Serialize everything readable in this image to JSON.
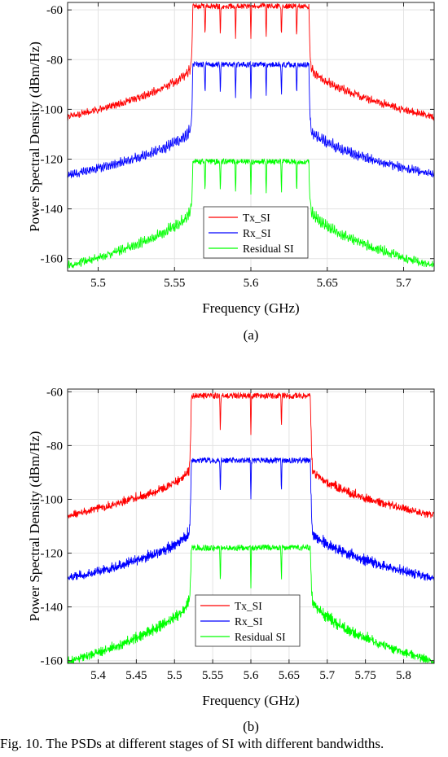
{
  "chart_data": [
    {
      "type": "line",
      "subfigure_label": "(a)",
      "xlabel": "Frequency (GHz)",
      "ylabel": "Power Spectral Density (dBm/Hz)",
      "xlim": [
        5.48,
        5.72
      ],
      "ylim": [
        -165,
        -57
      ],
      "xticks": [
        5.5,
        5.55,
        5.6,
        5.65,
        5.7
      ],
      "xtick_labels": [
        "5.5",
        "5.55",
        "5.6",
        "5.65",
        "5.7"
      ],
      "yticks": [
        -160,
        -140,
        -120,
        -100,
        -80,
        -60
      ],
      "ytick_labels": [
        "-160",
        "-140",
        "-120",
        "-100",
        "-80",
        "-60"
      ],
      "grid": true,
      "legend_position": "lower-center",
      "band": [
        5.562,
        5.638
      ],
      "notches": [
        5.57,
        5.58,
        5.59,
        5.6,
        5.61,
        5.62,
        5.63
      ],
      "series": [
        {
          "name": "Tx_SI",
          "color": "#ff0000",
          "in_band": -58.5,
          "skirt_top": -80,
          "edge": -102.5
        },
        {
          "name": "Rx_SI",
          "color": "#0000ff",
          "in_band": -82,
          "skirt_top": -104,
          "edge": -125.5
        },
        {
          "name": "Residual SI",
          "color": "#00ff00",
          "in_band": -121,
          "skirt_top": -136,
          "edge": -162
        }
      ]
    },
    {
      "type": "line",
      "subfigure_label": "(b)",
      "xlabel": "Frequency (GHz)",
      "ylabel": "Power Spectral Density (dBm/Hz)",
      "xlim": [
        5.36,
        5.84
      ],
      "ylim": [
        -161,
        -59
      ],
      "xticks": [
        5.4,
        5.45,
        5.5,
        5.55,
        5.6,
        5.65,
        5.7,
        5.75,
        5.8
      ],
      "xtick_labels": [
        "5.4",
        "5.45",
        "5.5",
        "5.55",
        "5.6",
        "5.65",
        "5.7",
        "5.75",
        "5.8"
      ],
      "yticks": [
        -160,
        -140,
        -120,
        -100,
        -80,
        -60
      ],
      "ytick_labels": [
        "-160",
        "-140",
        "-120",
        "-100",
        "-80",
        "-60"
      ],
      "grid": true,
      "legend_position": "lower-center",
      "band": [
        5.522,
        5.678
      ],
      "notches": [
        5.56,
        5.6,
        5.64
      ],
      "series": [
        {
          "name": "Tx_SI",
          "color": "#ff0000",
          "in_band": -61.5,
          "skirt_top": -86,
          "edge": -105.5
        },
        {
          "name": "Rx_SI",
          "color": "#0000ff",
          "in_band": -85.5,
          "skirt_top": -108,
          "edge": -128.5
        },
        {
          "name": "Residual SI",
          "color": "#00ff00",
          "in_band": -118,
          "skirt_top": -133,
          "edge": -159.5
        }
      ]
    }
  ],
  "caption": "Fig. 10.  The PSDs at different stages of SI with different bandwidths."
}
